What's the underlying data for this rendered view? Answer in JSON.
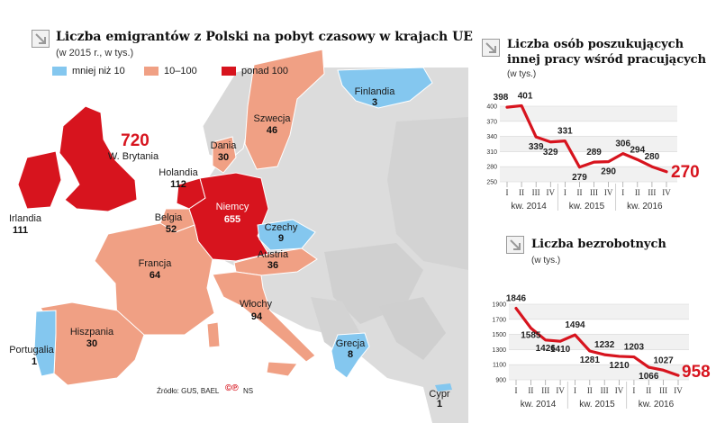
{
  "map": {
    "title": "Liczba emigrantów z Polski na pobyt czasowy w  krajach UE",
    "subtitle": "(w 2015 r., w tys.)",
    "legend": [
      {
        "label": "mniej niż 10",
        "color": "#84c7ef"
      },
      {
        "label": "10–100",
        "color": "#f0a084"
      },
      {
        "label": "ponad 100",
        "color": "#d7141e"
      }
    ],
    "countries": [
      {
        "name": "W. Brytania",
        "value": "720"
      },
      {
        "name": "Irlandia",
        "value": "111"
      },
      {
        "name": "Holandia",
        "value": "112"
      },
      {
        "name": "Niemcy",
        "value": "655"
      },
      {
        "name": "Belgia",
        "value": "52"
      },
      {
        "name": "Francja",
        "value": "64"
      },
      {
        "name": "Hiszpania",
        "value": "30"
      },
      {
        "name": "Portugalia",
        "value": "1"
      },
      {
        "name": "Włochy",
        "value": "94"
      },
      {
        "name": "Austria",
        "value": "36"
      },
      {
        "name": "Czechy",
        "value": "9"
      },
      {
        "name": "Dania",
        "value": "30"
      },
      {
        "name": "Szwecja",
        "value": "46"
      },
      {
        "name": "Finlandia",
        "value": "3"
      },
      {
        "name": "Grecja",
        "value": "8"
      },
      {
        "name": "Cypr",
        "value": "1"
      }
    ],
    "source": "Źródło: GUS, BAEL",
    "credit": "NS"
  },
  "chart_data": [
    {
      "type": "line",
      "title": "Liczba osób poszukujących innej pracy wśród pracujących",
      "title_line1": "Liczba osób poszukujących",
      "title_line2": "innej pracy wśród pracujących",
      "subtitle": "(w tys.)",
      "quarters": [
        "I",
        "II",
        "III",
        "IV",
        "I",
        "II",
        "III",
        "IV",
        "I",
        "II",
        "III",
        "IV"
      ],
      "years": [
        "kw. 2014",
        "kw. 2015",
        "kw. 2016"
      ],
      "values": [
        398,
        401,
        339,
        329,
        331,
        279,
        289,
        290,
        306,
        294,
        280,
        270
      ],
      "value_labels": [
        "398",
        "401",
        "339",
        "329",
        "331",
        "279",
        "289",
        "290",
        "306",
        "294",
        "280",
        "270"
      ],
      "yticks": [
        "400",
        "370",
        "340",
        "310",
        "280",
        "250"
      ],
      "ylim": [
        250,
        400
      ],
      "color": "#d7141e",
      "grid": true
    },
    {
      "type": "line",
      "title": "Liczba bezrobotnych",
      "subtitle": "(w tys.)",
      "quarters": [
        "I",
        "II",
        "III",
        "IV",
        "I",
        "II",
        "III",
        "IV",
        "I",
        "II",
        "III",
        "IV"
      ],
      "years": [
        "kw. 2014",
        "kw. 2015",
        "kw. 2016"
      ],
      "values": [
        1846,
        1585,
        1426,
        1410,
        1494,
        1281,
        1232,
        1210,
        1203,
        1066,
        1027,
        958
      ],
      "value_labels": [
        "1846",
        "1585",
        "1426",
        "1410",
        "1494",
        "1281",
        "1232",
        "1210",
        "1203",
        "1066",
        "1027",
        "958"
      ],
      "yticks": [
        "1900",
        "1700",
        "1500",
        "1300",
        "1100",
        "900"
      ],
      "ylim": [
        900,
        1900
      ],
      "color": "#d7141e",
      "grid": true
    }
  ]
}
